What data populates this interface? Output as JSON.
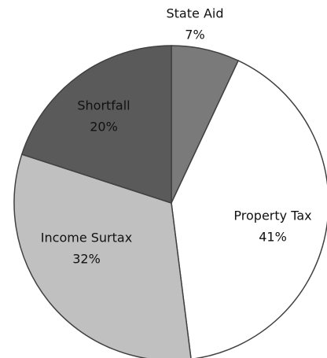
{
  "chart_data": {
    "type": "pie",
    "categories": [
      "State Aid",
      "Property Tax",
      "Income Surtax",
      "Shortfall"
    ],
    "values": [
      7,
      41,
      32,
      20
    ],
    "value_labels": [
      "7%",
      "41%",
      "32%",
      "20%"
    ],
    "colors": [
      "#7a7a7a",
      "#ffffff",
      "#c0c0c0",
      "#5a5a5a"
    ]
  }
}
